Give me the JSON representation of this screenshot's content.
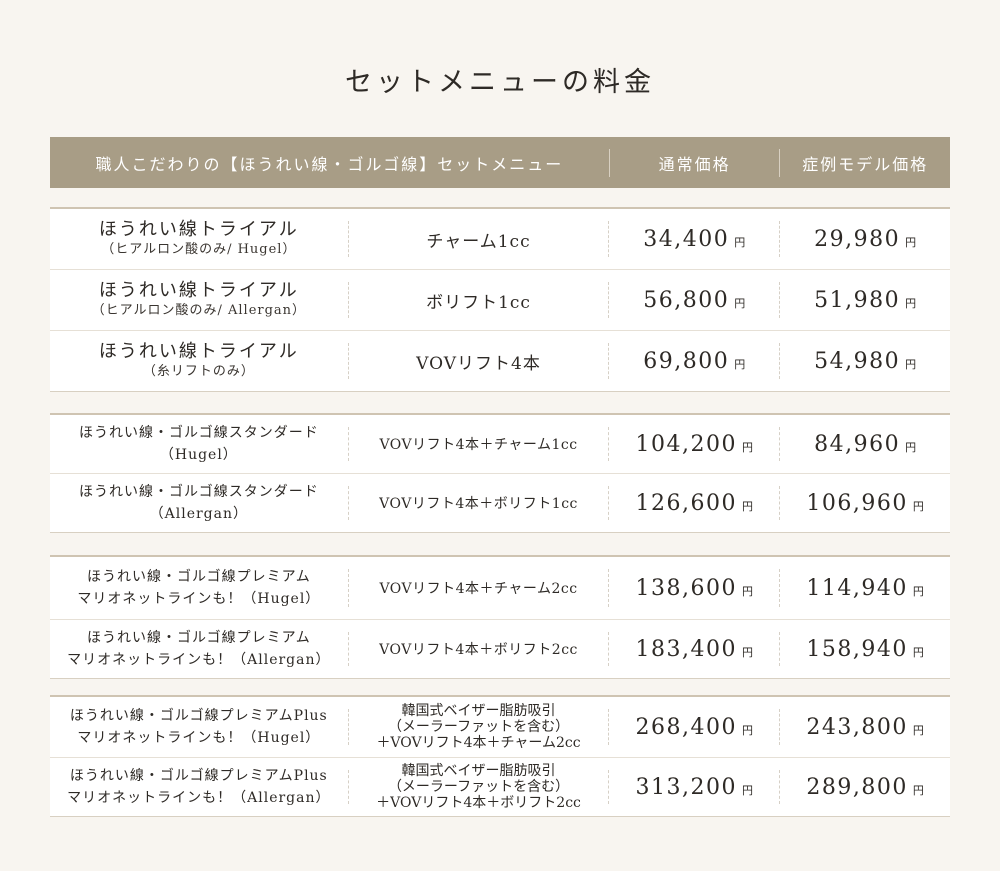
{
  "title": "セットメニューの料金",
  "header": {
    "col_menu": "職人こだわりの【ほうれい線・ゴルゴ線】セットメニュー",
    "col_regular": "通常価格",
    "col_model": "症例モデル価格"
  },
  "yen": "円",
  "groups": [
    {
      "rows": [
        {
          "name": "ほうれい線トライアル",
          "sub": "（ヒアルロン酸のみ/ Hugel）",
          "menu": "チャーム1cc",
          "regular": "34,400",
          "model": "29,980"
        },
        {
          "name": "ほうれい線トライアル",
          "sub": "（ヒアルロン酸のみ/ Allergan）",
          "menu": "ボリフト1cc",
          "regular": "56,800",
          "model": "51,980"
        },
        {
          "name": "ほうれい線トライアル",
          "sub": "（糸リフトのみ）",
          "menu": "VOVリフト4本",
          "regular": "69,800",
          "model": "54,980"
        }
      ]
    },
    {
      "rows": [
        {
          "name": "ほうれい線・ゴルゴ線スタンダード",
          "sub": "（Hugel）",
          "menu": "VOVリフト4本＋チャーム1cc",
          "regular": "104,200",
          "model": "84,960"
        },
        {
          "name": "ほうれい線・ゴルゴ線スタンダード",
          "sub": "（Allergan）",
          "menu": "VOVリフト4本＋ボリフト1cc",
          "regular": "126,600",
          "model": "106,960"
        }
      ]
    },
    {
      "rows": [
        {
          "name": "ほうれい線・ゴルゴ線プレミアム",
          "sub": "マリオネットラインも！（Hugel）",
          "menu": "VOVリフト4本＋チャーム2cc",
          "regular": "138,600",
          "model": "114,940"
        },
        {
          "name": "ほうれい線・ゴルゴ線プレミアム",
          "sub": "マリオネットラインも！（Allergan）",
          "menu": "VOVリフト4本＋ボリフト2cc",
          "regular": "183,400",
          "model": "158,940"
        }
      ]
    },
    {
      "rows": [
        {
          "name": "ほうれい線・ゴルゴ線プレミアムPlus",
          "sub": "マリオネットラインも！（Hugel）",
          "menu1": "韓国式ベイザー脂肪吸引",
          "menu2": "（メーラーファットを含む）",
          "menu3": "＋VOVリフト4本＋チャーム2cc",
          "regular": "268,400",
          "model": "243,800"
        },
        {
          "name": "ほうれい線・ゴルゴ線プレミアムPlus",
          "sub": "マリオネットラインも！（Allergan）",
          "menu1": "韓国式ベイザー脂肪吸引",
          "menu2": "（メーラーファットを含む）",
          "menu3": "＋VOVリフト4本＋ボリフト2cc",
          "regular": "313,200",
          "model": "289,800"
        }
      ]
    }
  ]
}
